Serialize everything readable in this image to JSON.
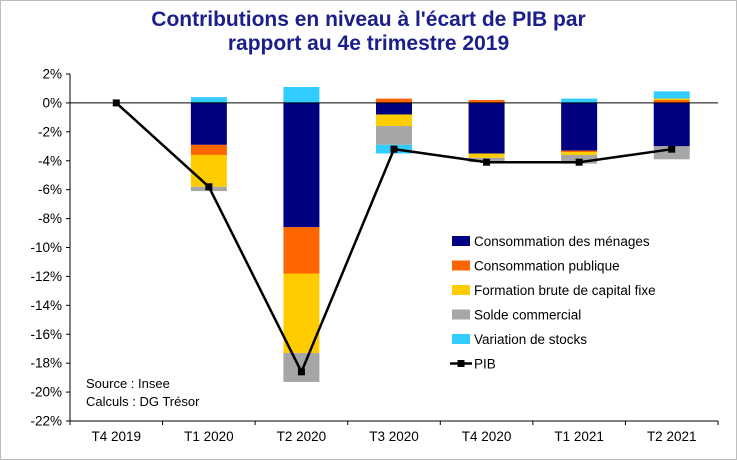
{
  "title_line1": "Contributions en niveau à l'écart de PIB par",
  "title_line2": "rapport au 4e trimestre 2019",
  "source_line1": "Source : Insee",
  "source_line2": "Calculs : DG Trésor",
  "chart_data": {
    "type": "bar",
    "stacked": true,
    "title": "Contributions en niveau à l'écart de PIB par rapport au 4e trimestre 2019",
    "categories": [
      "T4 2019",
      "T1 2020",
      "T2 2020",
      "T3 2020",
      "T4 2020",
      "T1 2021",
      "T2 2021"
    ],
    "ylim": [
      -22,
      2
    ],
    "yticks": [
      2,
      0,
      -2,
      -4,
      -6,
      -8,
      -10,
      -12,
      -14,
      -16,
      -18,
      -20,
      -22
    ],
    "ytick_labels": [
      "2%",
      "0%",
      "-2%",
      "-4%",
      "-6%",
      "-8%",
      "-10%",
      "-12%",
      "-14%",
      "-16%",
      "-18%",
      "-20%",
      "-22%"
    ],
    "grid": false,
    "legend_position": "right",
    "series": [
      {
        "name": "Consommation des ménages",
        "color": "#000080",
        "values": [
          0,
          -2.9,
          -8.6,
          -0.8,
          -3.5,
          -3.3,
          -3.0
        ]
      },
      {
        "name": "Consommation publique",
        "color": "#ff6600",
        "values": [
          0,
          -0.7,
          -3.2,
          0.3,
          0.2,
          -0.1,
          0.2
        ]
      },
      {
        "name": "Formation brute de capital fixe",
        "color": "#ffcc00",
        "values": [
          0,
          -2.2,
          -5.5,
          -0.8,
          -0.3,
          -0.2,
          0.1
        ]
      },
      {
        "name": "Solde commercial",
        "color": "#a6a6a6",
        "values": [
          0,
          -0.3,
          -2.0,
          -1.3,
          -0.3,
          -0.6,
          -0.9
        ]
      },
      {
        "name": "Variation de stocks",
        "color": "#33ccff",
        "values": [
          0,
          0.4,
          1.1,
          -0.6,
          0,
          0.3,
          0.5
        ]
      }
    ],
    "line": {
      "name": "PIB",
      "color": "#000000",
      "values": [
        0,
        -5.8,
        -18.6,
        -3.2,
        -4.1,
        -4.1,
        -3.2
      ]
    }
  }
}
